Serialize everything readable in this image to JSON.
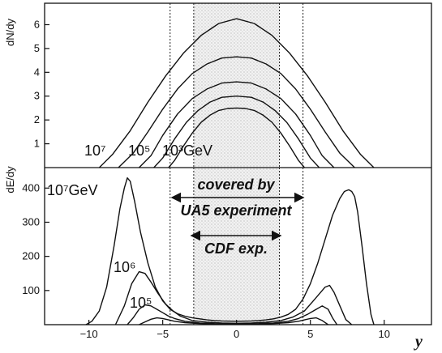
{
  "chart_data": [
    {
      "type": "line",
      "panel": "top",
      "ylabel": "dN/dy",
      "xlabel": "",
      "xlim": [
        -13,
        13.2
      ],
      "ylim": [
        0,
        6.9
      ],
      "yticks": [
        "1",
        "2",
        "3",
        "4",
        "5",
        "6"
      ],
      "shaded_regions": [
        [
          -2.9,
          2.9
        ],
        [
          -4.5,
          4.5
        ]
      ],
      "series": [
        {
          "name": "10³GeV",
          "x": [
            -4.6,
            -4.2,
            -3.6,
            -3,
            -2.4,
            -1.8,
            -1.2,
            -0.6,
            0,
            0.6,
            1.2,
            1.8,
            2.4,
            3,
            3.6,
            4.2,
            4.6
          ],
          "y": [
            0,
            0.3,
            0.9,
            1.45,
            1.9,
            2.2,
            2.4,
            2.48,
            2.5,
            2.48,
            2.4,
            2.2,
            1.9,
            1.45,
            0.9,
            0.3,
            0
          ]
        },
        {
          "series_rank": 2,
          "x": [
            -5.6,
            -5,
            -4.2,
            -3.4,
            -2.6,
            -1.8,
            -1,
            0,
            1,
            1.8,
            2.6,
            3.4,
            4.2,
            5,
            5.6
          ],
          "y": [
            0,
            0.4,
            1.2,
            1.9,
            2.4,
            2.75,
            2.95,
            3.0,
            2.95,
            2.75,
            2.4,
            1.9,
            1.2,
            0.4,
            0
          ]
        },
        {
          "name": "10⁵",
          "x": [
            -6.6,
            -5.8,
            -5,
            -4,
            -3,
            -2,
            -1,
            0,
            1,
            2,
            3,
            4,
            5,
            5.8,
            6.6
          ],
          "y": [
            0,
            0.5,
            1.35,
            2.25,
            2.9,
            3.3,
            3.55,
            3.6,
            3.55,
            3.3,
            2.9,
            2.25,
            1.35,
            0.5,
            0
          ]
        },
        {
          "series_rank": 4,
          "x": [
            -8,
            -7,
            -6,
            -5,
            -4,
            -3,
            -2,
            -1,
            0,
            1,
            2,
            3,
            4,
            5,
            6,
            7,
            8
          ],
          "y": [
            0,
            0.6,
            1.5,
            2.45,
            3.3,
            3.95,
            4.35,
            4.6,
            4.65,
            4.6,
            4.35,
            3.95,
            3.3,
            2.45,
            1.5,
            0.6,
            0
          ]
        },
        {
          "name": "10⁷",
          "x": [
            -9.3,
            -8.4,
            -7.2,
            -6,
            -4.8,
            -3.6,
            -2.4,
            -1.2,
            0,
            1.2,
            2.4,
            3.6,
            4.8,
            6,
            7.2,
            8.4,
            9.3
          ],
          "y": [
            0,
            0.55,
            1.55,
            2.75,
            3.85,
            4.8,
            5.55,
            6.05,
            6.25,
            6.05,
            5.55,
            4.8,
            3.85,
            2.75,
            1.55,
            0.55,
            0
          ]
        }
      ]
    },
    {
      "type": "line",
      "panel": "bottom",
      "ylabel": "dE/dy",
      "xlabel": "y",
      "xlim": [
        -13,
        13.2
      ],
      "ylim": [
        0,
        460
      ],
      "yticks": [
        "100",
        "200",
        "300",
        "400"
      ],
      "xticks": [
        "−10",
        "−5",
        "0",
        "5",
        "10"
      ],
      "shaded_regions": [
        [
          -2.9,
          2.9
        ],
        [
          -4.5,
          4.5
        ]
      ],
      "series": [
        {
          "name": "10⁷GeV",
          "x": [
            -10.2,
            -9.8,
            -9.3,
            -8.8,
            -8.3,
            -7.9,
            -7.6,
            -7.4,
            -7.2,
            -6.9,
            -6.5,
            -6,
            -5.5,
            -5,
            -4.5,
            -4,
            -3.5,
            -3,
            -2.5,
            -2,
            -1.5,
            -1,
            0,
            1,
            1.5,
            2,
            2.5,
            3,
            3.5,
            4,
            4.5,
            5,
            5.5,
            6,
            6.5,
            7,
            7.3,
            7.6,
            7.8,
            8,
            8.2,
            8.5,
            8.8,
            9.1,
            9.3
          ],
          "y": [
            0,
            10,
            40,
            110,
            230,
            340,
            400,
            430,
            420,
            360,
            270,
            180,
            110,
            70,
            45,
            32,
            25,
            20,
            17,
            14,
            12,
            11,
            10,
            11,
            12,
            14,
            17,
            22,
            30,
            45,
            75,
            120,
            180,
            250,
            320,
            370,
            390,
            395,
            390,
            375,
            330,
            230,
            120,
            30,
            0
          ]
        },
        {
          "name": "10⁶",
          "x": [
            -8.2,
            -7.6,
            -7.1,
            -6.6,
            -6.2,
            -5.8,
            -5.3,
            -4.8,
            -4.3,
            -3.8,
            -3,
            -2,
            -1,
            0,
            1,
            2,
            3,
            3.8,
            4.6,
            5.3,
            6,
            6.3,
            6.6,
            7,
            7.4,
            7.8
          ],
          "y": [
            0,
            55,
            120,
            155,
            150,
            125,
            90,
            60,
            40,
            25,
            12,
            7,
            5,
            4,
            5,
            7,
            12,
            22,
            40,
            75,
            110,
            115,
            95,
            55,
            15,
            0
          ]
        },
        {
          "name": "10⁵",
          "x": [
            -7.4,
            -7,
            -6.6,
            -6.2,
            -5.8,
            -5.4,
            -5,
            -4.6,
            -4.2,
            -3.5,
            -2.5,
            -1.5,
            0,
            1.5,
            2.5,
            3.5,
            4.2,
            4.8,
            5.4,
            5.8,
            6.2,
            6.5,
            6.8
          ],
          "y": [
            0,
            20,
            45,
            58,
            55,
            45,
            35,
            25,
            18,
            10,
            5,
            3,
            2,
            3,
            5,
            10,
            18,
            30,
            45,
            55,
            45,
            20,
            0
          ]
        },
        {
          "series_rank": 4,
          "x": [
            -6.6,
            -6.2,
            -5.8,
            -5.4,
            -5,
            -4.6,
            -4.2,
            -3.5,
            -2.5,
            -1.5,
            0,
            1.5,
            2.5,
            3.5,
            4.2,
            4.6,
            5,
            5.4,
            5.8,
            6.2
          ],
          "y": [
            0,
            8,
            16,
            20,
            18,
            14,
            10,
            6,
            3,
            2,
            1,
            2,
            3,
            6,
            10,
            14,
            18,
            20,
            12,
            0
          ]
        }
      ]
    }
  ],
  "annotations": {
    "top_label_1": "10⁷",
    "top_label_2": "10⁵",
    "top_label_3": "10³GeV",
    "bottom_label_1": "10⁷GeV",
    "bottom_label_2": "10⁶",
    "bottom_label_3": "10⁵",
    "covered_line1": "covered by",
    "covered_line2": "UA5 experiment",
    "cdf": "CDF exp."
  }
}
